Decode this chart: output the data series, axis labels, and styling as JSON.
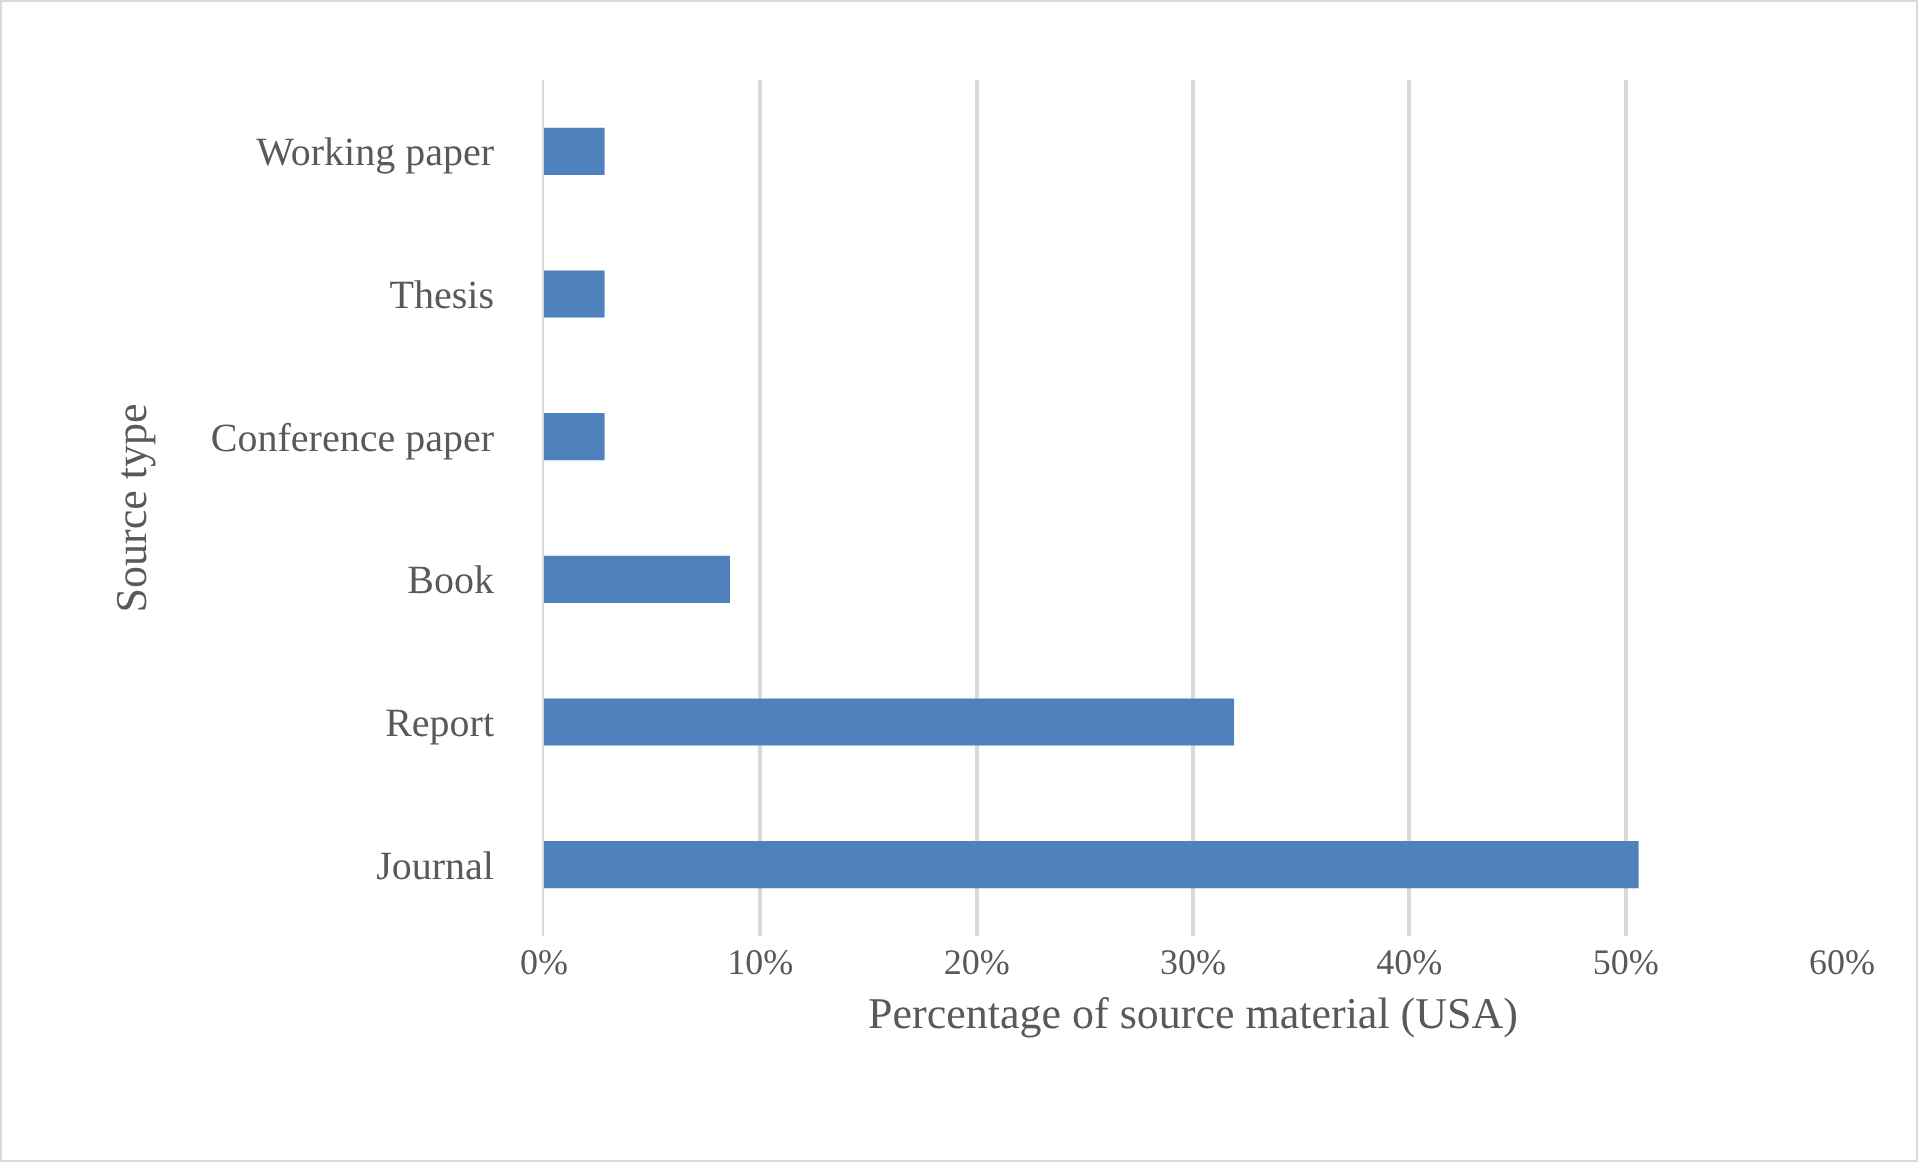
{
  "chart_data": {
    "type": "bar",
    "orientation": "horizontal",
    "xlabel": "Percentage of source material (USA)",
    "ylabel": "Source type",
    "categories": [
      "Working paper",
      "Thesis",
      "Conference paper",
      "Book",
      "Report",
      "Journal"
    ],
    "values": [
      2.8,
      2.8,
      2.8,
      8.6,
      31.9,
      50.6
    ],
    "color": "#4f81bd",
    "xlim": [
      0,
      60
    ],
    "xticks": [
      {
        "value": 0,
        "label": "0%"
      },
      {
        "value": 10,
        "label": "10%"
      },
      {
        "value": 20,
        "label": "20%"
      },
      {
        "value": 30,
        "label": "30%"
      },
      {
        "value": 40,
        "label": "40%"
      },
      {
        "value": 50,
        "label": "50%"
      },
      {
        "value": 60,
        "label": "60%"
      }
    ],
    "grid": "x",
    "legend": false
  }
}
